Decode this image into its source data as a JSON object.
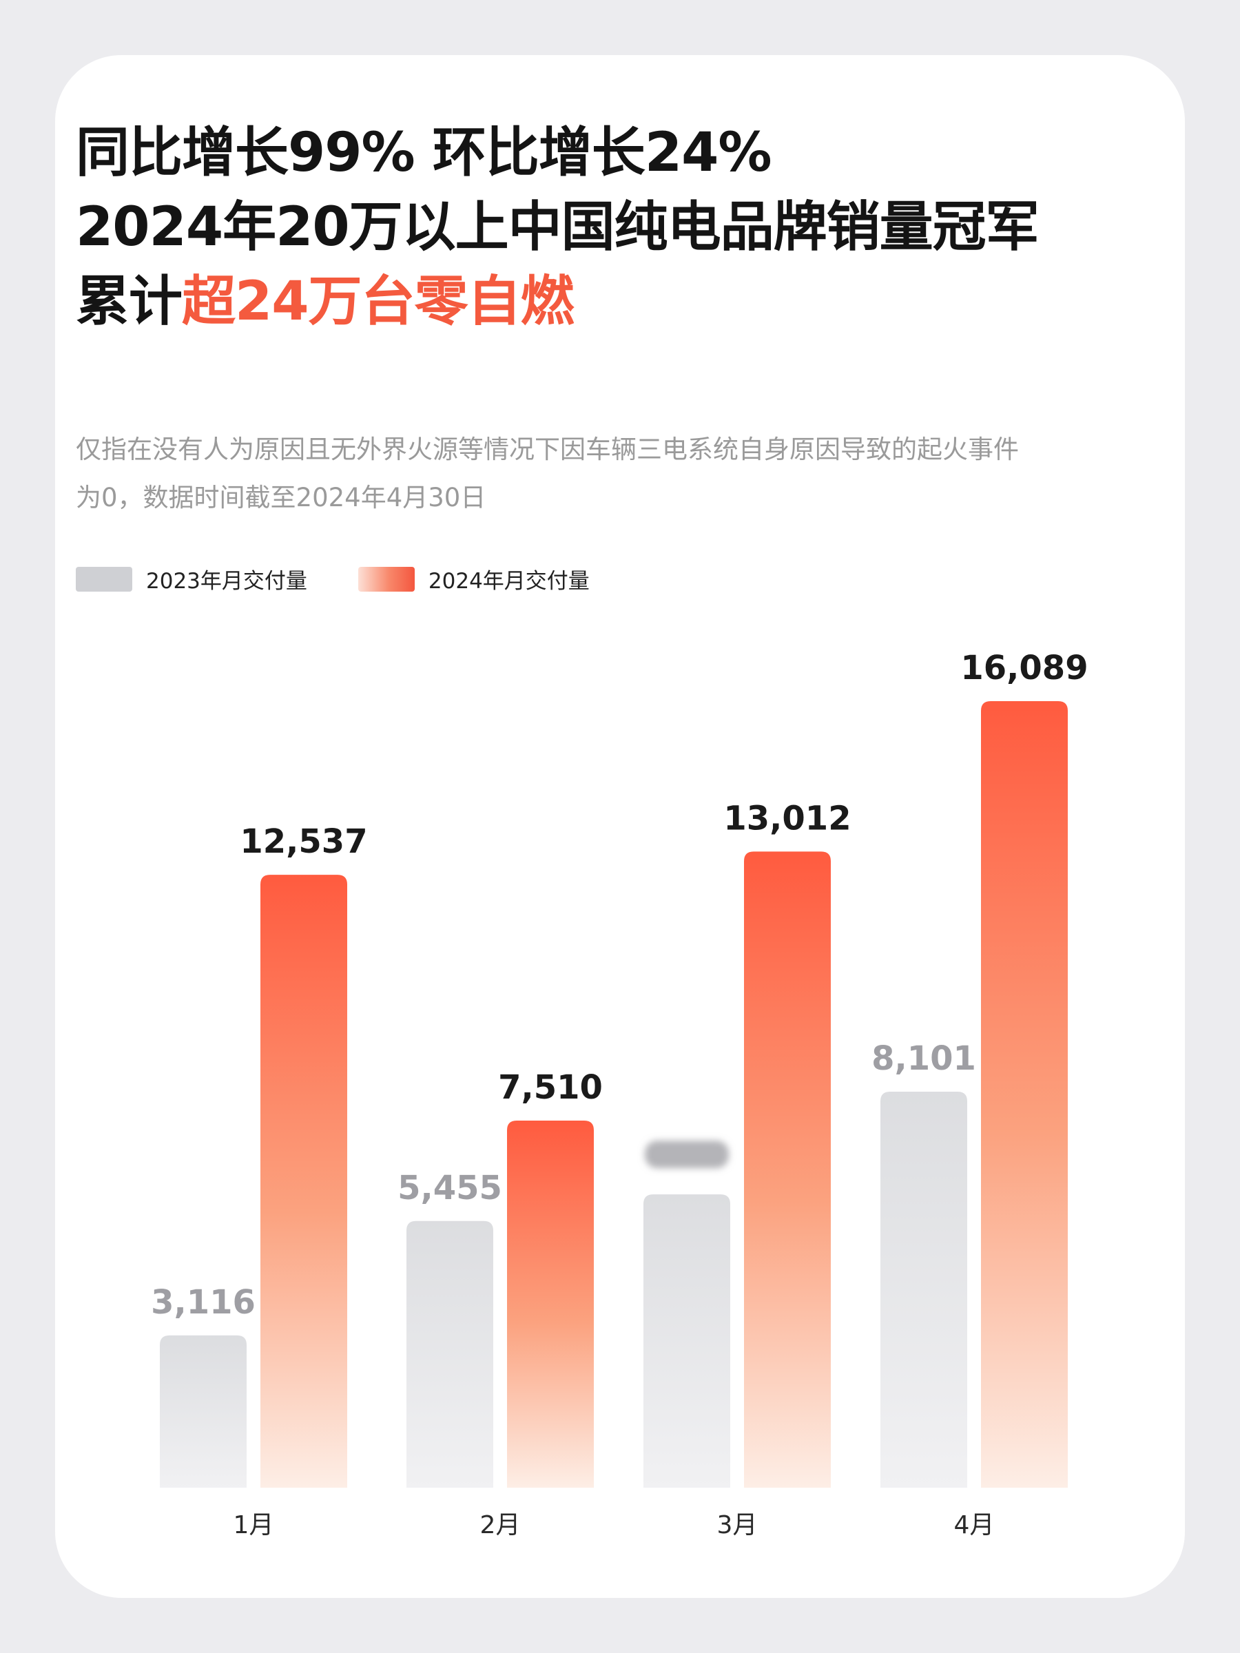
{
  "headline": {
    "line1": "同比增长99% 环比增长24%",
    "line2": "2024年20万以上中国纯电品牌销量冠军",
    "line3_prefix": "累计",
    "line3_highlight": "超24万台零自燃"
  },
  "note": {
    "line1": "仅指在没有人为原因且无外界火源等情况下因车辆三电系统自身原因导致的起火事件",
    "line2": "为0，数据时间截至2024年4月30日"
  },
  "colors": {
    "accent": "#f45a3e",
    "bar_2023": "#dedfe1",
    "bar_2024_top": "#ff5b3f",
    "bar_2024_bottom": "#fdeee6",
    "label_2023": "#9e9ea3",
    "label_2024": "#1a1a1a"
  },
  "chart_data": {
    "type": "bar",
    "categories": [
      "1月",
      "2月",
      "3月",
      "4月"
    ],
    "series": [
      {
        "name": "2023年月交付量",
        "values": [
          3116,
          5455,
          6000,
          8101
        ],
        "labels": [
          "3,116",
          "5,455",
          "",
          "8,101"
        ]
      },
      {
        "name": "2024年月交付量",
        "values": [
          12537,
          7510,
          13012,
          16089
        ],
        "labels": [
          "12,537",
          "7,510",
          "13,012",
          "16,089"
        ]
      }
    ],
    "legend": "top-left",
    "grid": false,
    "ylim": [
      0,
      16089
    ]
  }
}
